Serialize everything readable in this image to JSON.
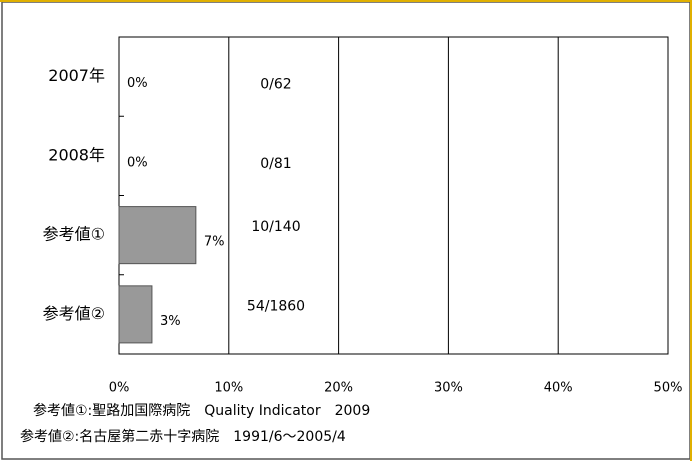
{
  "chart_data": {
    "type": "bar",
    "orientation": "horizontal",
    "categories": [
      "2007年",
      "2008年",
      "参考値①",
      "参考値②"
    ],
    "values": [
      0,
      0,
      7,
      3
    ],
    "value_labels": [
      "0%",
      "0%",
      "7%",
      "3%"
    ],
    "annotations": [
      "0/62",
      "0/81",
      "10/140",
      "54/1860"
    ],
    "color": "#999999",
    "xlim": [
      0,
      50
    ],
    "xticks": [
      {
        "value": 0,
        "label": "0%"
      },
      {
        "value": 10,
        "label": "10%"
      },
      {
        "value": 20,
        "label": "20%"
      },
      {
        "value": 30,
        "label": "30%"
      },
      {
        "value": 40,
        "label": "40%"
      },
      {
        "value": 50,
        "label": "50%"
      }
    ],
    "grid": true,
    "notes": [
      "参考値①:聖路加国際病院　Quality Indicator　2009",
      "参考値②:名古屋第二赤十字病院　1991/6～2005/4"
    ]
  }
}
